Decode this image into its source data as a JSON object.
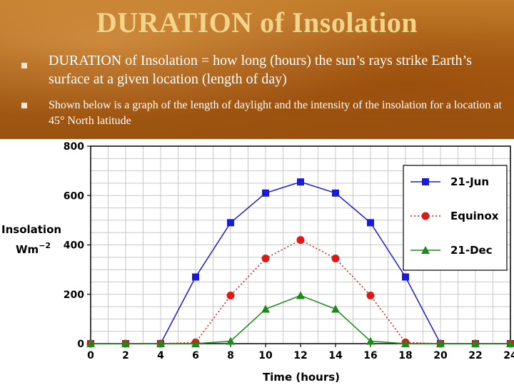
{
  "slide": {
    "title": "DURATION of Insolation",
    "bullets": [
      "DURATION of Insolation = how long (hours) the sun’s rays strike Earth’s surface at a given location (length of day)",
      "Shown below is a graph of the length of daylight and the intensity of the insolation for a location at 45° North latitude"
    ]
  },
  "chart_data": {
    "type": "line",
    "title": "",
    "xlabel": "Time (hours)",
    "ylabel": "Insolation",
    "ylabel_unit": "Wm",
    "ylabel_unit_exp": "−2",
    "xlim": [
      0,
      24
    ],
    "ylim": [
      0,
      800
    ],
    "x_ticks": [
      0,
      2,
      4,
      6,
      8,
      10,
      12,
      14,
      16,
      18,
      20,
      22,
      24
    ],
    "y_ticks": [
      0,
      200,
      400,
      600,
      800
    ],
    "grid": true,
    "legend_position": "top-right",
    "series": [
      {
        "name": "21-Jun",
        "color": "#1a1adb",
        "line": "solid",
        "marker": "square",
        "x": [
          0,
          2,
          4,
          6,
          8,
          10,
          12,
          14,
          16,
          18,
          20,
          22,
          24
        ],
        "y": [
          0,
          0,
          0,
          270,
          490,
          610,
          655,
          610,
          490,
          270,
          0,
          0,
          0
        ]
      },
      {
        "name": "Equinox",
        "color": "#e01818",
        "line": "dotted",
        "marker": "circle",
        "x": [
          0,
          2,
          4,
          6,
          8,
          10,
          12,
          14,
          16,
          18,
          20,
          22,
          24
        ],
        "y": [
          0,
          0,
          0,
          5,
          195,
          345,
          420,
          345,
          195,
          5,
          0,
          0,
          0
        ]
      },
      {
        "name": "21-Dec",
        "color": "#1a8a1a",
        "line": "solid",
        "marker": "triangle",
        "x": [
          0,
          2,
          4,
          6,
          8,
          10,
          12,
          14,
          16,
          18,
          20,
          22,
          24
        ],
        "y": [
          0,
          0,
          0,
          0,
          10,
          140,
          195,
          140,
          10,
          0,
          0,
          0,
          0
        ]
      }
    ]
  }
}
